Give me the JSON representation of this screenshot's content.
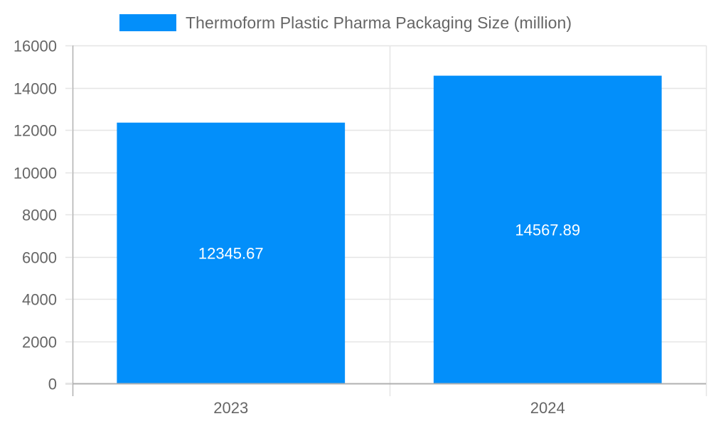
{
  "chart_data": {
    "type": "bar",
    "title": "",
    "categories": [
      "2023",
      "2024"
    ],
    "series": [
      {
        "name": "Thermoform Plastic Pharma Packaging Size (million)",
        "values": [
          12345.67,
          14567.89
        ],
        "color": "#038ffa"
      }
    ],
    "data_labels": [
      "12345.67",
      "14567.89"
    ],
    "xlabel": "",
    "ylabel": "",
    "ylim": [
      0,
      16000
    ],
    "yticks": [
      0,
      2000,
      4000,
      6000,
      8000,
      10000,
      12000,
      14000,
      16000
    ],
    "ytick_labels": [
      "0",
      "2000",
      "4000",
      "6000",
      "8000",
      "10000",
      "12000",
      "14000",
      "16000"
    ],
    "grid": true,
    "legend_position": "top"
  },
  "legend": {
    "label": "Thermoform Plastic Pharma Packaging Size (million)",
    "color": "#038ffa"
  },
  "colors": {
    "bar": "#038ffa",
    "grid": "#e5e5e5",
    "axis": "#b0b0b0",
    "tick_text": "#666666",
    "data_label": "#ffffff"
  }
}
